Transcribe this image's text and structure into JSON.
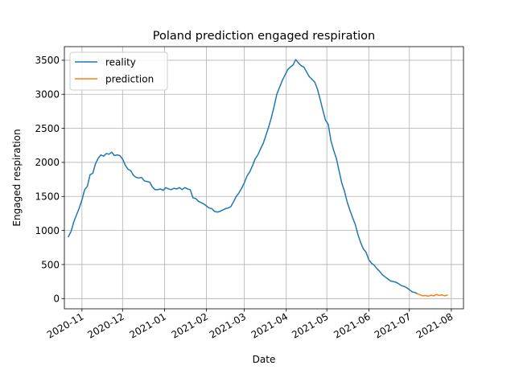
{
  "chart_data": {
    "type": "line",
    "title": "Poland prediction engaged respiration",
    "xlabel": "Date",
    "ylabel": "Engaged respiration",
    "xlim": [
      "2020-10-19",
      "2021-08-10"
    ],
    "ylim": [
      -150,
      3700
    ],
    "x_ticks": [
      "2020-11-01",
      "2020-12-01",
      "2021-01-01",
      "2021-02-01",
      "2021-03-01",
      "2021-04-01",
      "2021-05-01",
      "2021-06-01",
      "2021-07-01",
      "2021-08-01"
    ],
    "x_tick_labels": [
      "2020-11",
      "2020-12",
      "2021-01",
      "2021-02",
      "2021-03",
      "2021-04",
      "2021-05",
      "2021-06",
      "2021-07",
      "2021-08"
    ],
    "y_ticks": [
      0,
      500,
      1000,
      1500,
      2000,
      2500,
      3000,
      3500
    ],
    "y_tick_labels": [
      "0",
      "500",
      "1000",
      "1500",
      "2000",
      "2500",
      "3000",
      "3500"
    ],
    "grid": true,
    "legend_position": "top-left",
    "series": [
      {
        "name": "reality",
        "color": "#1f77b4",
        "points": [
          [
            "2020-10-22",
            910
          ],
          [
            "2020-10-24",
            990
          ],
          [
            "2020-10-26",
            1130
          ],
          [
            "2020-10-28",
            1230
          ],
          [
            "2020-10-30",
            1330
          ],
          [
            "2020-11-01",
            1450
          ],
          [
            "2020-11-03",
            1600
          ],
          [
            "2020-11-05",
            1650
          ],
          [
            "2020-11-07",
            1820
          ],
          [
            "2020-11-09",
            1840
          ],
          [
            "2020-11-11",
            1980
          ],
          [
            "2020-11-13",
            2060
          ],
          [
            "2020-11-15",
            2110
          ],
          [
            "2020-11-17",
            2090
          ],
          [
            "2020-11-19",
            2130
          ],
          [
            "2020-11-21",
            2120
          ],
          [
            "2020-11-23",
            2150
          ],
          [
            "2020-11-25",
            2100
          ],
          [
            "2020-11-27",
            2110
          ],
          [
            "2020-11-29",
            2100
          ],
          [
            "2020-12-01",
            2050
          ],
          [
            "2020-12-03",
            1960
          ],
          [
            "2020-12-05",
            1900
          ],
          [
            "2020-12-07",
            1880
          ],
          [
            "2020-12-09",
            1810
          ],
          [
            "2020-12-11",
            1780
          ],
          [
            "2020-12-13",
            1770
          ],
          [
            "2020-12-15",
            1780
          ],
          [
            "2020-12-17",
            1730
          ],
          [
            "2020-12-19",
            1720
          ],
          [
            "2020-12-21",
            1710
          ],
          [
            "2020-12-23",
            1640
          ],
          [
            "2020-12-25",
            1600
          ],
          [
            "2020-12-27",
            1600
          ],
          [
            "2020-12-29",
            1610
          ],
          [
            "2020-12-31",
            1590
          ],
          [
            "2021-01-02",
            1630
          ],
          [
            "2021-01-04",
            1610
          ],
          [
            "2021-01-06",
            1600
          ],
          [
            "2021-01-08",
            1620
          ],
          [
            "2021-01-10",
            1610
          ],
          [
            "2021-01-12",
            1630
          ],
          [
            "2021-01-14",
            1600
          ],
          [
            "2021-01-16",
            1630
          ],
          [
            "2021-01-18",
            1610
          ],
          [
            "2021-01-20",
            1600
          ],
          [
            "2021-01-22",
            1480
          ],
          [
            "2021-01-24",
            1470
          ],
          [
            "2021-01-26",
            1430
          ],
          [
            "2021-01-28",
            1410
          ],
          [
            "2021-01-30",
            1390
          ],
          [
            "2021-02-01",
            1360
          ],
          [
            "2021-02-03",
            1330
          ],
          [
            "2021-02-05",
            1320
          ],
          [
            "2021-02-07",
            1280
          ],
          [
            "2021-02-09",
            1270
          ],
          [
            "2021-02-11",
            1280
          ],
          [
            "2021-02-13",
            1300
          ],
          [
            "2021-02-15",
            1320
          ],
          [
            "2021-02-17",
            1330
          ],
          [
            "2021-02-19",
            1350
          ],
          [
            "2021-02-21",
            1420
          ],
          [
            "2021-02-23",
            1500
          ],
          [
            "2021-02-25",
            1550
          ],
          [
            "2021-02-27",
            1620
          ],
          [
            "2021-03-01",
            1700
          ],
          [
            "2021-03-03",
            1800
          ],
          [
            "2021-03-05",
            1860
          ],
          [
            "2021-03-07",
            1950
          ],
          [
            "2021-03-09",
            2050
          ],
          [
            "2021-03-11",
            2110
          ],
          [
            "2021-03-13",
            2200
          ],
          [
            "2021-03-15",
            2280
          ],
          [
            "2021-03-17",
            2400
          ],
          [
            "2021-03-19",
            2520
          ],
          [
            "2021-03-21",
            2660
          ],
          [
            "2021-03-23",
            2820
          ],
          [
            "2021-03-25",
            3000
          ],
          [
            "2021-03-27",
            3100
          ],
          [
            "2021-03-29",
            3200
          ],
          [
            "2021-03-31",
            3280
          ],
          [
            "2021-04-02",
            3360
          ],
          [
            "2021-04-04",
            3400
          ],
          [
            "2021-04-06",
            3430
          ],
          [
            "2021-04-08",
            3510
          ],
          [
            "2021-04-10",
            3460
          ],
          [
            "2021-04-12",
            3420
          ],
          [
            "2021-04-14",
            3400
          ],
          [
            "2021-04-16",
            3330
          ],
          [
            "2021-04-18",
            3260
          ],
          [
            "2021-04-20",
            3220
          ],
          [
            "2021-04-22",
            3180
          ],
          [
            "2021-04-24",
            3080
          ],
          [
            "2021-04-26",
            2930
          ],
          [
            "2021-04-28",
            2770
          ],
          [
            "2021-04-30",
            2620
          ],
          [
            "2021-05-02",
            2560
          ],
          [
            "2021-05-04",
            2320
          ],
          [
            "2021-05-06",
            2180
          ],
          [
            "2021-05-08",
            2060
          ],
          [
            "2021-05-10",
            1880
          ],
          [
            "2021-05-12",
            1700
          ],
          [
            "2021-05-14",
            1580
          ],
          [
            "2021-05-16",
            1420
          ],
          [
            "2021-05-18",
            1300
          ],
          [
            "2021-05-20",
            1190
          ],
          [
            "2021-05-22",
            1090
          ],
          [
            "2021-05-24",
            940
          ],
          [
            "2021-05-26",
            820
          ],
          [
            "2021-05-28",
            730
          ],
          [
            "2021-05-30",
            680
          ],
          [
            "2021-06-01",
            570
          ],
          [
            "2021-06-03",
            520
          ],
          [
            "2021-06-05",
            490
          ],
          [
            "2021-06-07",
            440
          ],
          [
            "2021-06-09",
            400
          ],
          [
            "2021-06-11",
            350
          ],
          [
            "2021-06-13",
            320
          ],
          [
            "2021-06-15",
            290
          ],
          [
            "2021-06-17",
            260
          ],
          [
            "2021-06-19",
            250
          ],
          [
            "2021-06-21",
            240
          ],
          [
            "2021-06-23",
            220
          ],
          [
            "2021-06-25",
            190
          ],
          [
            "2021-06-27",
            180
          ],
          [
            "2021-06-29",
            160
          ],
          [
            "2021-07-01",
            130
          ],
          [
            "2021-07-03",
            100
          ],
          [
            "2021-07-05",
            90
          ],
          [
            "2021-07-07",
            70
          ]
        ]
      },
      {
        "name": "prediction",
        "color": "#ff7f0e",
        "points": [
          [
            "2021-07-07",
            70
          ],
          [
            "2021-07-09",
            55
          ],
          [
            "2021-07-11",
            40
          ],
          [
            "2021-07-13",
            45
          ],
          [
            "2021-07-15",
            35
          ],
          [
            "2021-07-17",
            50
          ],
          [
            "2021-07-19",
            40
          ],
          [
            "2021-07-21",
            60
          ],
          [
            "2021-07-23",
            45
          ],
          [
            "2021-07-25",
            55
          ],
          [
            "2021-07-27",
            40
          ],
          [
            "2021-07-29",
            50
          ]
        ]
      }
    ]
  }
}
